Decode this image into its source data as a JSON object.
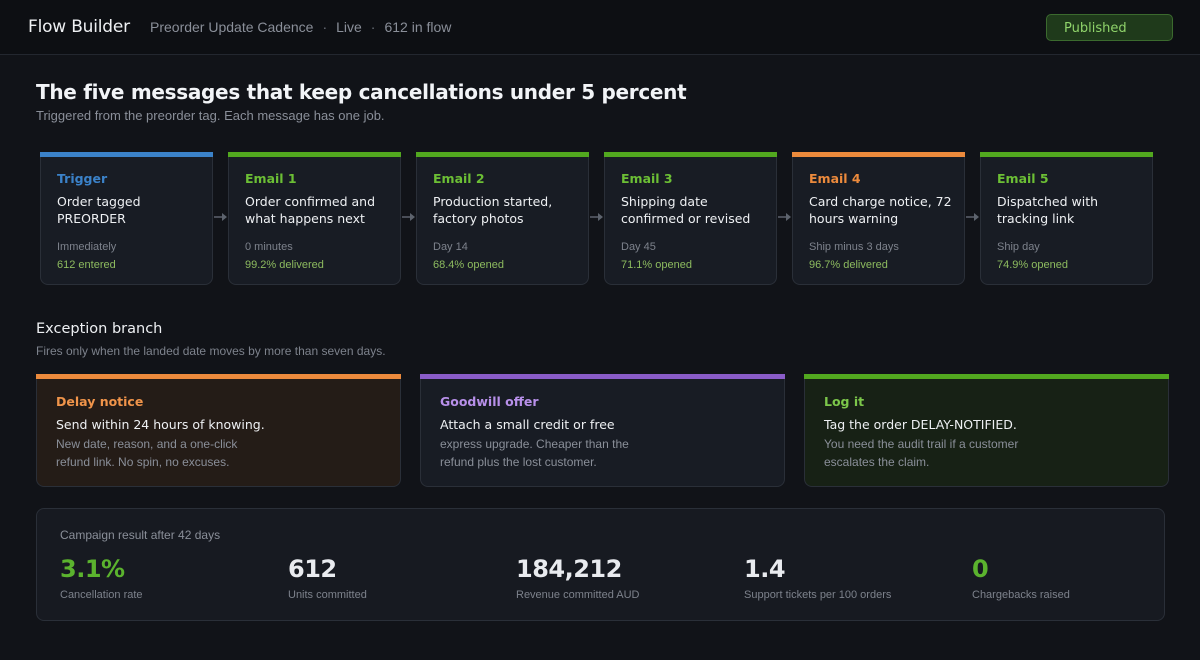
{
  "topbar": {
    "app_title": "Flow Builder",
    "crumbs": [
      "Preorder Update Cadence",
      "Live",
      "612 in flow"
    ],
    "separator": "·",
    "publish_label": "Published"
  },
  "header": {
    "title": "The five messages that keep cancellations under 5 percent",
    "subtitle": "Triggered from the preorder tag. Each message has one job."
  },
  "flow": {
    "steps": [
      {
        "kind": "Trigger",
        "title": "Order tagged PREORDER",
        "timing": "Immediately",
        "metric": "612 entered",
        "accent": "#3b82c9",
        "metric_color": "#8dbb5f"
      },
      {
        "kind": "Email 1",
        "title": "Order confirmed and what happens next",
        "timing": "0 minutes",
        "metric": "99.2% delivered",
        "accent": "#52a81f"
      },
      {
        "kind": "Email 2",
        "title": "Production started, factory photos",
        "timing": "Day 14",
        "metric": "68.4% opened",
        "accent": "#52a81f"
      },
      {
        "kind": "Email 3",
        "title": "Shipping date confirmed or revised",
        "timing": "Day 45",
        "metric": "71.1% opened",
        "accent": "#52a81f"
      },
      {
        "kind": "Email 4",
        "title": "Card charge notice, 72 hours warning",
        "timing": "Ship minus 3 days",
        "metric": "96.7% delivered",
        "accent": "#ec8a3c"
      },
      {
        "kind": "Email 5",
        "title": "Dispatched with tracking link",
        "timing": "Ship day",
        "metric": "74.9% opened",
        "accent": "#52a81f"
      }
    ]
  },
  "exception": {
    "title": "Exception branch",
    "subtitle": "Fires only when the landed date moves by more than seven days.",
    "cards": [
      {
        "kind": "Delay notice",
        "lead": "Send within 24 hours of knowing.",
        "body": "New date, reason, and a one-click refund link. No spin, no excuses.",
        "accent": "#ec8a3c",
        "kind_color": "#f0944a",
        "bg": "#241c17"
      },
      {
        "kind": "Goodwill offer",
        "lead": "Attach a small credit or free",
        "body": "express upgrade. Cheaper than the refund plus the lost customer.",
        "accent": "#8a5cc8",
        "kind_color": "#b890ea",
        "bg": "#181c24"
      },
      {
        "kind": "Log it",
        "lead": "Tag the order DELAY-NOTIFIED.",
        "body": "You need the audit trail if a customer escalates the claim.",
        "accent": "#52a81f",
        "kind_color": "#7cc74a",
        "bg": "#172115"
      }
    ]
  },
  "results": {
    "caption": "Campaign result after 42 days",
    "stats": [
      {
        "value": "3.1%",
        "label": "Cancellation rate",
        "highlight": true
      },
      {
        "value": "612",
        "label": "Units committed",
        "highlight": false
      },
      {
        "value": "184,212",
        "label": "Revenue committed AUD",
        "highlight": false
      },
      {
        "value": "1.4",
        "label": "Support tickets per 100 orders",
        "highlight": false
      },
      {
        "value": "0",
        "label": "Chargebacks raised",
        "highlight": true
      }
    ]
  }
}
